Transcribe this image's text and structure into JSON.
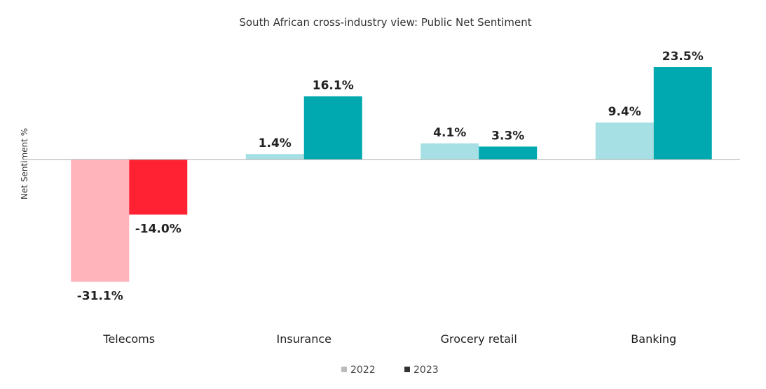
{
  "chart_data": {
    "type": "bar",
    "title": "South African cross-industry view: Public Net Sentiment",
    "xlabel": "",
    "ylabel": "Net Sentiment %",
    "categories": [
      "Telecoms",
      "Insurance",
      "Grocery retail",
      "Banking"
    ],
    "series": [
      {
        "name": "2022",
        "values": [
          -31.1,
          1.4,
          4.1,
          9.4
        ],
        "labels": [
          "-31.1%",
          "1.4%",
          "4.1%",
          "9.4%"
        ]
      },
      {
        "name": "2023",
        "values": [
          -14.0,
          16.1,
          3.3,
          23.5
        ],
        "labels": [
          "-14.0%",
          "16.1%",
          "3.3%",
          "23.5%"
        ]
      }
    ],
    "bar_colors": {
      "2022": {
        "negative": "#FFB3BA",
        "positive": "#A7E0E4"
      },
      "2023": {
        "negative": "#FF2233",
        "positive": "#00A8B0"
      }
    },
    "legend_colors": {
      "2022": "#BBBBBB",
      "2023": "#333333"
    },
    "legend_position": "bottom",
    "grid": false,
    "ylim": [
      -40,
      30
    ]
  }
}
